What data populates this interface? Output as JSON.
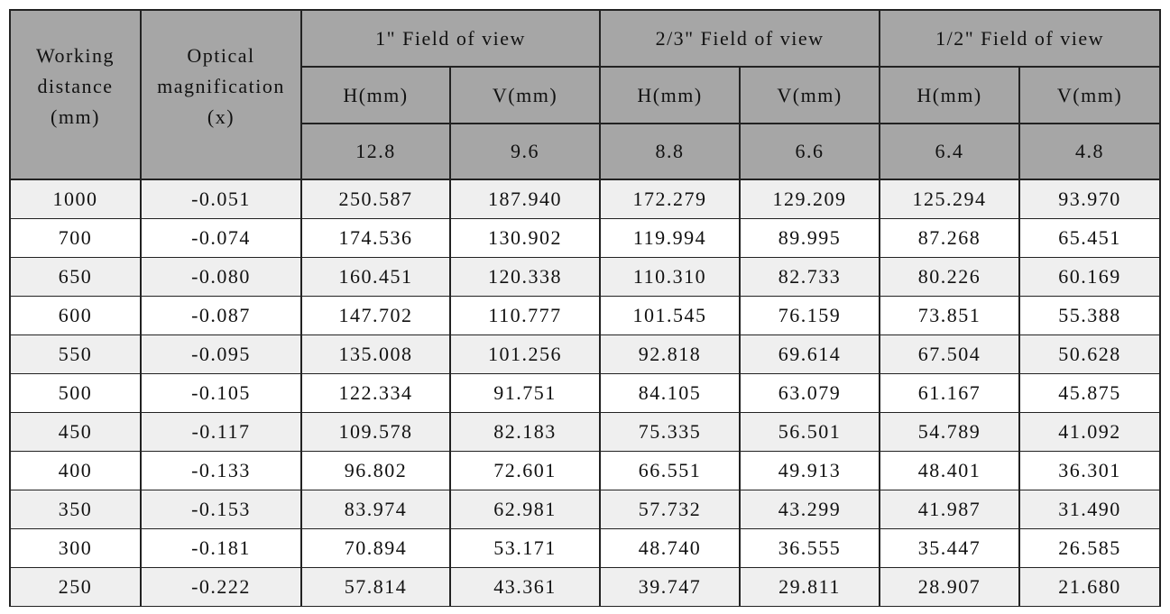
{
  "header": {
    "working_distance": [
      "Working",
      "distance",
      "(mm)"
    ],
    "optical_magnification": [
      "Optical",
      "magnification",
      "(x)"
    ],
    "groups": [
      {
        "title": "1\" Field of view",
        "columns": [
          {
            "label": "H(mm)",
            "size": "12.8"
          },
          {
            "label": "V(mm)",
            "size": "9.6"
          }
        ]
      },
      {
        "title": "2/3\" Field of view",
        "columns": [
          {
            "label": "H(mm)",
            "size": "8.8"
          },
          {
            "label": "V(mm)",
            "size": "6.6"
          }
        ]
      },
      {
        "title": "1/2\" Field of view",
        "columns": [
          {
            "label": "H(mm)",
            "size": "6.4"
          },
          {
            "label": "V(mm)",
            "size": "4.8"
          }
        ]
      }
    ]
  },
  "rows": [
    [
      "1000",
      "-0.051",
      "250.587",
      "187.940",
      "172.279",
      "129.209",
      "125.294",
      "93.970"
    ],
    [
      "700",
      "-0.074",
      "174.536",
      "130.902",
      "119.994",
      "89.995",
      "87.268",
      "65.451"
    ],
    [
      "650",
      "-0.080",
      "160.451",
      "120.338",
      "110.310",
      "82.733",
      "80.226",
      "60.169"
    ],
    [
      "600",
      "-0.087",
      "147.702",
      "110.777",
      "101.545",
      "76.159",
      "73.851",
      "55.388"
    ],
    [
      "550",
      "-0.095",
      "135.008",
      "101.256",
      "92.818",
      "69.614",
      "67.504",
      "50.628"
    ],
    [
      "500",
      "-0.105",
      "122.334",
      "91.751",
      "84.105",
      "63.079",
      "61.167",
      "45.875"
    ],
    [
      "450",
      "-0.117",
      "109.578",
      "82.183",
      "75.335",
      "56.501",
      "54.789",
      "41.092"
    ],
    [
      "400",
      "-0.133",
      "96.802",
      "72.601",
      "66.551",
      "49.913",
      "48.401",
      "36.301"
    ],
    [
      "350",
      "-0.153",
      "83.974",
      "62.981",
      "57.732",
      "43.299",
      "41.987",
      "31.490"
    ],
    [
      "300",
      "-0.181",
      "70.894",
      "53.171",
      "48.740",
      "36.555",
      "35.447",
      "26.585"
    ],
    [
      "250",
      "-0.222",
      "57.814",
      "43.361",
      "39.747",
      "29.811",
      "28.907",
      "21.680"
    ]
  ]
}
